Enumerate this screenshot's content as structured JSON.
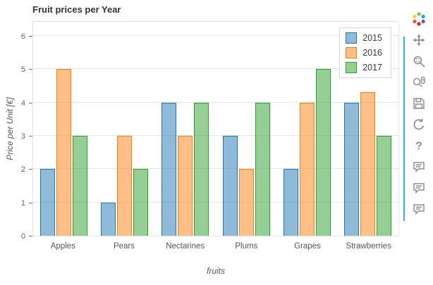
{
  "title": "Fruit prices per Year",
  "chart_data": {
    "type": "bar",
    "title": "Fruit prices per Year",
    "xlabel": "fruits",
    "ylabel": "Price per Unit [€]",
    "categories": [
      "Apples",
      "Pears",
      "Nectarines",
      "Plums",
      "Grapes",
      "Strawberries"
    ],
    "series": [
      {
        "name": "2015",
        "fill": "rgba(31,119,180,0.5)",
        "edge": "#1f77b4",
        "values": [
          2,
          1,
          4,
          3,
          2,
          4
        ]
      },
      {
        "name": "2016",
        "fill": "rgba(255,127,14,0.5)",
        "edge": "#ff7f0e",
        "values": [
          5,
          3,
          3,
          2,
          4,
          4.3
        ]
      },
      {
        "name": "2017",
        "fill": "rgba(44,160,44,0.5)",
        "edge": "#2ca02c",
        "values": [
          3,
          2,
          4,
          4,
          5,
          3
        ]
      }
    ],
    "ylim": [
      0,
      6
    ],
    "yticks": [
      0,
      1,
      2,
      3,
      4,
      5,
      6
    ],
    "grid": true,
    "legend_position": "top_right"
  },
  "legend": {
    "items": [
      "2015",
      "2016",
      "2017"
    ]
  },
  "toolbar": {
    "active_color": "#30b3e6",
    "tools": [
      {
        "name": "bokeh-logo"
      },
      {
        "name": "pan-tool"
      },
      {
        "name": "box-zoom-tool"
      },
      {
        "name": "wheel-zoom-tool"
      },
      {
        "name": "save-tool"
      },
      {
        "name": "reset-tool"
      },
      {
        "name": "help-tool"
      },
      {
        "name": "hover-tool-1"
      },
      {
        "name": "hover-tool-2"
      },
      {
        "name": "hover-tool-3"
      }
    ]
  }
}
